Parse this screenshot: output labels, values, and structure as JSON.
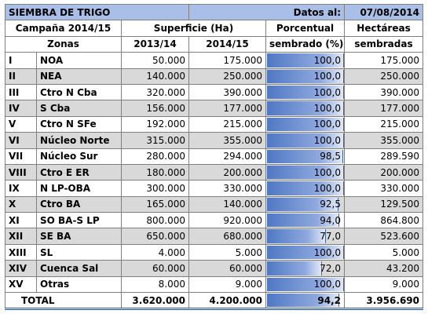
{
  "title": "SIEMBRA DE TRIGO",
  "date_label": "Datos al:",
  "date_value": "07/08/2014",
  "headers": {
    "campaign": "Campaña 2014/15",
    "surface": "Superficie (Ha)",
    "percent_line1": "Porcentual",
    "percent_line2": "sembrado (%)",
    "hectares_line1": "Hectáreas",
    "hectares_line2": "sembradas",
    "zones": "Zonas",
    "year1": "2013/14",
    "year2": "2014/15"
  },
  "rows": [
    {
      "code": "I",
      "zone": "NOA",
      "s1314": "50.000",
      "s1415": "175.000",
      "pct": "100,0",
      "pct_value": 100.0,
      "ha": "175.000"
    },
    {
      "code": "II",
      "zone": "NEA",
      "s1314": "140.000",
      "s1415": "250.000",
      "pct": "100,0",
      "pct_value": 100.0,
      "ha": "250.000"
    },
    {
      "code": "III",
      "zone": "Ctro N Cba",
      "s1314": "320.000",
      "s1415": "390.000",
      "pct": "100,0",
      "pct_value": 100.0,
      "ha": "390.000"
    },
    {
      "code": "IV",
      "zone": "S Cba",
      "s1314": "156.000",
      "s1415": "177.000",
      "pct": "100,0",
      "pct_value": 100.0,
      "ha": "177.000"
    },
    {
      "code": "V",
      "zone": "Ctro N SFe",
      "s1314": "192.000",
      "s1415": "215.000",
      "pct": "100,0",
      "pct_value": 100.0,
      "ha": "215.000"
    },
    {
      "code": "VI",
      "zone": "Núcleo Norte",
      "s1314": "315.000",
      "s1415": "355.000",
      "pct": "100,0",
      "pct_value": 100.0,
      "ha": "355.000"
    },
    {
      "code": "VII",
      "zone": "Núcleo Sur",
      "s1314": "280.000",
      "s1415": "294.000",
      "pct": "98,5",
      "pct_value": 98.5,
      "ha": "289.590"
    },
    {
      "code": "VIII",
      "zone": "Ctro E ER",
      "s1314": "180.000",
      "s1415": "200.000",
      "pct": "100,0",
      "pct_value": 100.0,
      "ha": "200.000"
    },
    {
      "code": "IX",
      "zone": "N LP-OBA",
      "s1314": "300.000",
      "s1415": "330.000",
      "pct": "100,0",
      "pct_value": 100.0,
      "ha": "330.000"
    },
    {
      "code": "X",
      "zone": "Ctro BA",
      "s1314": "165.000",
      "s1415": "140.000",
      "pct": "92,5",
      "pct_value": 92.5,
      "ha": "129.500"
    },
    {
      "code": "XI",
      "zone": "SO BA-S LP",
      "s1314": "800.000",
      "s1415": "920.000",
      "pct": "94,0",
      "pct_value": 94.0,
      "ha": "864.800"
    },
    {
      "code": "XII",
      "zone": "SE BA",
      "s1314": "650.000",
      "s1415": "680.000",
      "pct": "77,0",
      "pct_value": 77.0,
      "ha": "523.600"
    },
    {
      "code": "XIII",
      "zone": "SL",
      "s1314": "4.000",
      "s1415": "5.000",
      "pct": "100,0",
      "pct_value": 100.0,
      "ha": "5.000"
    },
    {
      "code": "XIV",
      "zone": "Cuenca Sal",
      "s1314": "60.000",
      "s1415": "60.000",
      "pct": "72,0",
      "pct_value": 72.0,
      "ha": "43.200"
    },
    {
      "code": "XV",
      "zone": "Otras",
      "s1314": "8.000",
      "s1415": "9.000",
      "pct": "100,0",
      "pct_value": 100.0,
      "ha": "9.000"
    }
  ],
  "total": {
    "label": "TOTAL",
    "s1314": "3.620.000",
    "s1415": "4.200.000",
    "pct": "94,2",
    "pct_value": 94.2,
    "ha": "3.956.690"
  },
  "colors": {
    "title_band": "#a9bfe8",
    "alt_row": "#d9d9d9",
    "bar_start": "#4f78c4",
    "bar_end": "#e2e9f7",
    "bottom_rule": "#1f4e9a"
  }
}
